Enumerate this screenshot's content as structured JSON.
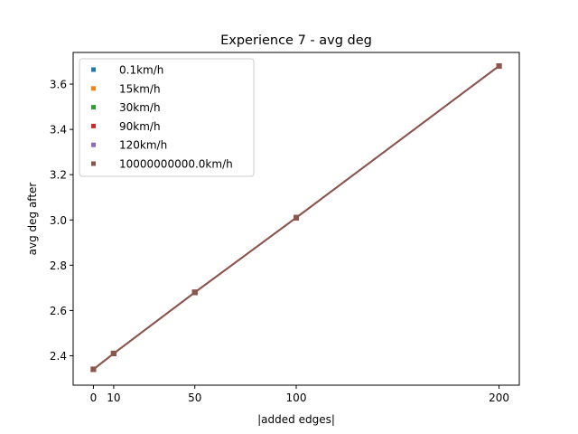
{
  "chart_data": {
    "type": "line",
    "title": "Experience 7 - avg deg",
    "xlabel": "|added edges|",
    "ylabel": "avg deg after",
    "x": [
      0,
      10,
      50,
      100,
      200
    ],
    "xticks": [
      0,
      10,
      50,
      100,
      200
    ],
    "yticks": [
      2.4,
      2.6,
      2.8,
      3.0,
      3.2,
      3.4,
      3.6
    ],
    "ytick_labels": [
      "2.4",
      "2.6",
      "2.8",
      "3.0",
      "3.2",
      "3.4",
      "3.6"
    ],
    "xlim": [
      -10,
      210
    ],
    "ylim": [
      2.27,
      3.74
    ],
    "grid": false,
    "legend_position": "upper-left",
    "series": [
      {
        "name": "0.1km/h",
        "color": "#1f77b4",
        "values": [
          2.34,
          2.41,
          2.68,
          3.01,
          3.68
        ]
      },
      {
        "name": "15km/h",
        "color": "#ff7f0e",
        "values": [
          2.34,
          2.41,
          2.68,
          3.01,
          3.68
        ]
      },
      {
        "name": "30km/h",
        "color": "#2ca02c",
        "values": [
          2.34,
          2.41,
          2.68,
          3.01,
          3.68
        ]
      },
      {
        "name": "90km/h",
        "color": "#d62728",
        "values": [
          2.34,
          2.41,
          2.68,
          3.01,
          3.68
        ]
      },
      {
        "name": "120km/h",
        "color": "#9467bd",
        "values": [
          2.34,
          2.41,
          2.68,
          3.01,
          3.68
        ]
      },
      {
        "name": "10000000000.0km/h",
        "color": "#8c564b",
        "values": [
          2.34,
          2.41,
          2.68,
          3.01,
          3.68
        ]
      }
    ]
  }
}
